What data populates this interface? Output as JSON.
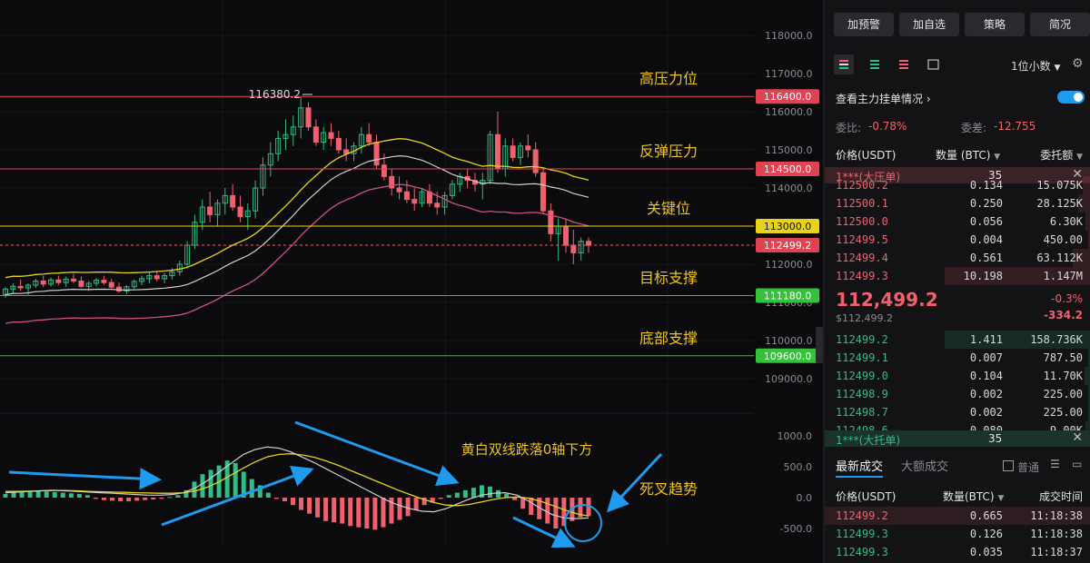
{
  "chart_data": {
    "type": "candlestick",
    "price_axis": {
      "ticks": [
        "118000.0",
        "117000.0",
        "116000.0",
        "115000.0",
        "114000.0",
        "113000.0",
        "112000.0",
        "111000.0",
        "110000.0",
        "109000.0"
      ],
      "tick_values": [
        118000,
        117000,
        116000,
        115000,
        114000,
        113000,
        112000,
        111000,
        110000,
        109000
      ]
    },
    "macd_axis": {
      "ticks": [
        "1000.0",
        "500.0",
        "0.0",
        "-500.0"
      ],
      "tick_values": [
        1000,
        500,
        0,
        -500
      ]
    },
    "high_marker": "116380.2",
    "levels": [
      {
        "value": 116400.0,
        "tag": "116400.0",
        "annotation": "高压力位",
        "color": "#e04452"
      },
      {
        "value": 114500.0,
        "tag": "114500.0",
        "annotation": "反弹压力",
        "color": "#e04452"
      },
      {
        "value": 113000.0,
        "tag": "113000.0",
        "annotation": "关键位",
        "color": "#e8d31a"
      },
      {
        "value": 111180.0,
        "tag": "111180.0",
        "annotation": "目标支撑",
        "color": "#35c23a"
      },
      {
        "value": 109600.0,
        "tag": "109600.0",
        "annotation": "底部支撑",
        "color": "#35c23a"
      }
    ],
    "current_price": {
      "value": 112499.2,
      "tag": "112499.2"
    },
    "macd_annotations": [
      "黄白双线跌落0轴下方",
      "死叉趋势"
    ],
    "candles": [
      [
        111210,
        111400,
        111120,
        111350
      ],
      [
        111350,
        111500,
        111250,
        111420
      ],
      [
        111420,
        111600,
        111300,
        111380
      ],
      [
        111380,
        111500,
        111200,
        111450
      ],
      [
        111450,
        111620,
        111380,
        111560
      ],
      [
        111560,
        111700,
        111400,
        111480
      ],
      [
        111480,
        111650,
        111420,
        111590
      ],
      [
        111590,
        111700,
        111450,
        111520
      ],
      [
        111520,
        111680,
        111400,
        111610
      ],
      [
        111610,
        111750,
        111500,
        111560
      ],
      [
        111560,
        111680,
        111380,
        111420
      ],
      [
        111420,
        111560,
        111300,
        111500
      ],
      [
        111500,
        111640,
        111420,
        111580
      ],
      [
        111580,
        111700,
        111460,
        111520
      ],
      [
        111520,
        111620,
        111360,
        111400
      ],
      [
        111400,
        111520,
        111250,
        111300
      ],
      [
        111300,
        111450,
        111220,
        111410
      ],
      [
        111410,
        111600,
        111350,
        111550
      ],
      [
        111550,
        111700,
        111450,
        111620
      ],
      [
        111620,
        111800,
        111500,
        111700
      ],
      [
        111700,
        111820,
        111550,
        111620
      ],
      [
        111620,
        111780,
        111500,
        111700
      ],
      [
        111700,
        111900,
        111600,
        111800
      ],
      [
        111800,
        112100,
        111700,
        112000
      ],
      [
        112000,
        112600,
        111900,
        112500
      ],
      [
        112500,
        113300,
        112400,
        113100
      ],
      [
        113100,
        113700,
        112900,
        113500
      ],
      [
        113500,
        113900,
        113100,
        113300
      ],
      [
        113300,
        113700,
        113000,
        113600
      ],
      [
        113600,
        114000,
        113300,
        113800
      ],
      [
        113800,
        114100,
        113400,
        113500
      ],
      [
        113500,
        113800,
        113100,
        113250
      ],
      [
        113250,
        113600,
        112900,
        113400
      ],
      [
        113400,
        114200,
        113200,
        114000
      ],
      [
        114000,
        114800,
        113800,
        114600
      ],
      [
        114600,
        115200,
        114300,
        114900
      ],
      [
        114900,
        115500,
        114700,
        115300
      ],
      [
        115300,
        115800,
        115000,
        115400
      ],
      [
        115400,
        115900,
        115100,
        115600
      ],
      [
        115600,
        116380,
        115300,
        116100
      ],
      [
        116100,
        116250,
        115500,
        115600
      ],
      [
        115600,
        115800,
        115100,
        115200
      ],
      [
        115200,
        115600,
        115000,
        115450
      ],
      [
        115450,
        115700,
        115100,
        115300
      ],
      [
        115300,
        115500,
        114900,
        115000
      ],
      [
        115000,
        115300,
        114700,
        114900
      ],
      [
        114900,
        115200,
        114700,
        115100
      ],
      [
        115100,
        115600,
        114900,
        115400
      ],
      [
        115400,
        115700,
        115100,
        115200
      ],
      [
        115200,
        115400,
        114500,
        114600
      ],
      [
        114600,
        114900,
        114200,
        114300
      ],
      [
        114300,
        114500,
        113800,
        114000
      ],
      [
        114000,
        114300,
        113700,
        113900
      ],
      [
        113900,
        114200,
        113600,
        113700
      ],
      [
        113700,
        114000,
        113400,
        113600
      ],
      [
        113600,
        114000,
        113500,
        113900
      ],
      [
        113900,
        114100,
        113500,
        113600
      ],
      [
        113600,
        113900,
        113300,
        113500
      ],
      [
        113500,
        113900,
        113300,
        113800
      ],
      [
        113800,
        114200,
        113700,
        114100
      ],
      [
        114100,
        114400,
        113900,
        114300
      ],
      [
        114300,
        114500,
        114000,
        114200
      ],
      [
        114200,
        114400,
        113900,
        114100
      ],
      [
        114100,
        114400,
        113700,
        114200
      ],
      [
        114200,
        115500,
        114100,
        115400
      ],
      [
        115400,
        116000,
        114400,
        114500
      ],
      [
        114500,
        115300,
        114300,
        115100
      ],
      [
        115100,
        115300,
        114700,
        114800
      ],
      [
        114800,
        115200,
        114600,
        115100
      ],
      [
        115100,
        115400,
        114800,
        115000
      ],
      [
        115000,
        115200,
        114300,
        114400
      ],
      [
        114400,
        114500,
        113300,
        113400
      ],
      [
        113400,
        113600,
        112600,
        112800
      ],
      [
        112800,
        113200,
        112100,
        113000
      ],
      [
        113000,
        113200,
        112300,
        112500
      ],
      [
        112500,
        112900,
        112000,
        112300
      ],
      [
        112300,
        112700,
        112100,
        112600
      ],
      [
        112600,
        112700,
        112300,
        112499
      ]
    ],
    "macd_hist": [
      60,
      80,
      90,
      100,
      110,
      100,
      90,
      80,
      70,
      60,
      40,
      -20,
      -40,
      -50,
      -60,
      -60,
      -50,
      -40,
      -30,
      -20,
      10,
      40,
      120,
      260,
      380,
      450,
      520,
      600,
      560,
      420,
      300,
      200,
      80,
      -20,
      -60,
      -120,
      -200,
      -260,
      -320,
      -380,
      -400,
      -420,
      -460,
      -480,
      -500,
      -520,
      -480,
      -420,
      -360,
      -300,
      -200,
      -120,
      -80,
      -20,
      40,
      80,
      120,
      160,
      200,
      180,
      120,
      60,
      -40,
      -180,
      -280,
      -350,
      -420,
      -500,
      -460,
      -380,
      -320,
      -300
    ],
    "macd_dif": [
      80,
      90,
      100,
      110,
      120,
      110,
      100,
      90,
      80,
      70,
      60,
      50,
      40,
      40,
      50,
      80,
      160,
      280,
      420,
      560,
      700,
      780,
      820,
      800,
      740,
      650,
      560,
      460,
      360,
      260,
      160,
      60,
      -40,
      -120,
      -180,
      -220,
      -230,
      -180,
      -100,
      -20,
      40,
      70,
      80,
      40,
      -60,
      -180,
      -280,
      -330,
      -340,
      -330
    ],
    "macd_dea": [
      100,
      100,
      105,
      110,
      115,
      115,
      110,
      100,
      95,
      90,
      85,
      80,
      75,
      70,
      70,
      80,
      110,
      170,
      260,
      370,
      480,
      580,
      660,
      700,
      710,
      690,
      650,
      590,
      520,
      440,
      360,
      280,
      200,
      120,
      50,
      -20,
      -80,
      -120,
      -130,
      -110,
      -70,
      -30,
      0,
      10,
      -10,
      -60,
      -130,
      -200,
      -260,
      -300
    ]
  },
  "sidebar": {
    "buttons": [
      "加预警",
      "加自选",
      "策略",
      "简况"
    ],
    "precision": "1位小数",
    "main_orders_label": "查看主力挂单情况",
    "weibi_label": "委比:",
    "weibi_value": "-0.78%",
    "weicha_label": "委差:",
    "weicha_value": "-12.755",
    "headers": {
      "price": "价格(USDT)",
      "qty": "数量 (BTC)",
      "amount": "委托额"
    },
    "ask_banner": {
      "name": "1***(大压单)",
      "value": "35"
    },
    "asks": [
      {
        "price": "112500.2",
        "qty": "0.134",
        "amt": "15.075K",
        "depth": 0.05
      },
      {
        "price": "112500.1",
        "qty": "0.250",
        "amt": "28.125K",
        "depth": 0.08
      },
      {
        "price": "112500.0",
        "qty": "0.056",
        "amt": "6.30K",
        "depth": 0.03
      },
      {
        "price": "112499.5",
        "qty": "0.004",
        "amt": "450.00",
        "depth": 0.01
      },
      {
        "price": "112499.4",
        "qty": "0.561",
        "amt": "63.112K",
        "depth": 0.12
      },
      {
        "price": "112499.3",
        "qty": "10.198",
        "amt": "1.147M",
        "depth": 1.0
      }
    ],
    "last_price": "112,499.2",
    "last_price_usd": "$112,499.2",
    "change_pct": "-0.3%",
    "change_abs": "-334.2",
    "bids": [
      {
        "price": "112499.2",
        "qty": "1.411",
        "amt": "158.736K",
        "depth": 1.0
      },
      {
        "price": "112499.1",
        "qty": "0.007",
        "amt": "787.50",
        "depth": 0.01
      },
      {
        "price": "112499.0",
        "qty": "0.104",
        "amt": "11.70K",
        "depth": 0.04
      },
      {
        "price": "112498.9",
        "qty": "0.002",
        "amt": "225.00",
        "depth": 0.01
      },
      {
        "price": "112498.7",
        "qty": "0.002",
        "amt": "225.00",
        "depth": 0.01
      },
      {
        "price": "112498.6",
        "qty": "0.080",
        "amt": "9.00K",
        "depth": 0.03
      }
    ],
    "bid_banner": {
      "name": "1***(大托单)",
      "value": "35"
    },
    "trade_tabs": [
      "最新成交",
      "大额成交"
    ],
    "normal_label": "普通",
    "trade_headers": {
      "price": "价格(USDT)",
      "qty": "数量(BTC)",
      "time": "成交时间"
    },
    "trades": [
      {
        "price": "112499.2",
        "qty": "0.665",
        "time": "11:18:38",
        "side": "sell"
      },
      {
        "price": "112499.3",
        "qty": "0.126",
        "time": "11:18:38",
        "side": "buy"
      },
      {
        "price": "112499.3",
        "qty": "0.035",
        "time": "11:18:37",
        "side": "buy"
      }
    ]
  },
  "colors": {
    "up": "#2ebd85",
    "down": "#f0616d",
    "yellow": "#e8d31a",
    "white_line": "#d0d0d0",
    "pink_line": "#d0508a",
    "annotation": "#f0c419",
    "arrow": "#1e9bf0"
  }
}
